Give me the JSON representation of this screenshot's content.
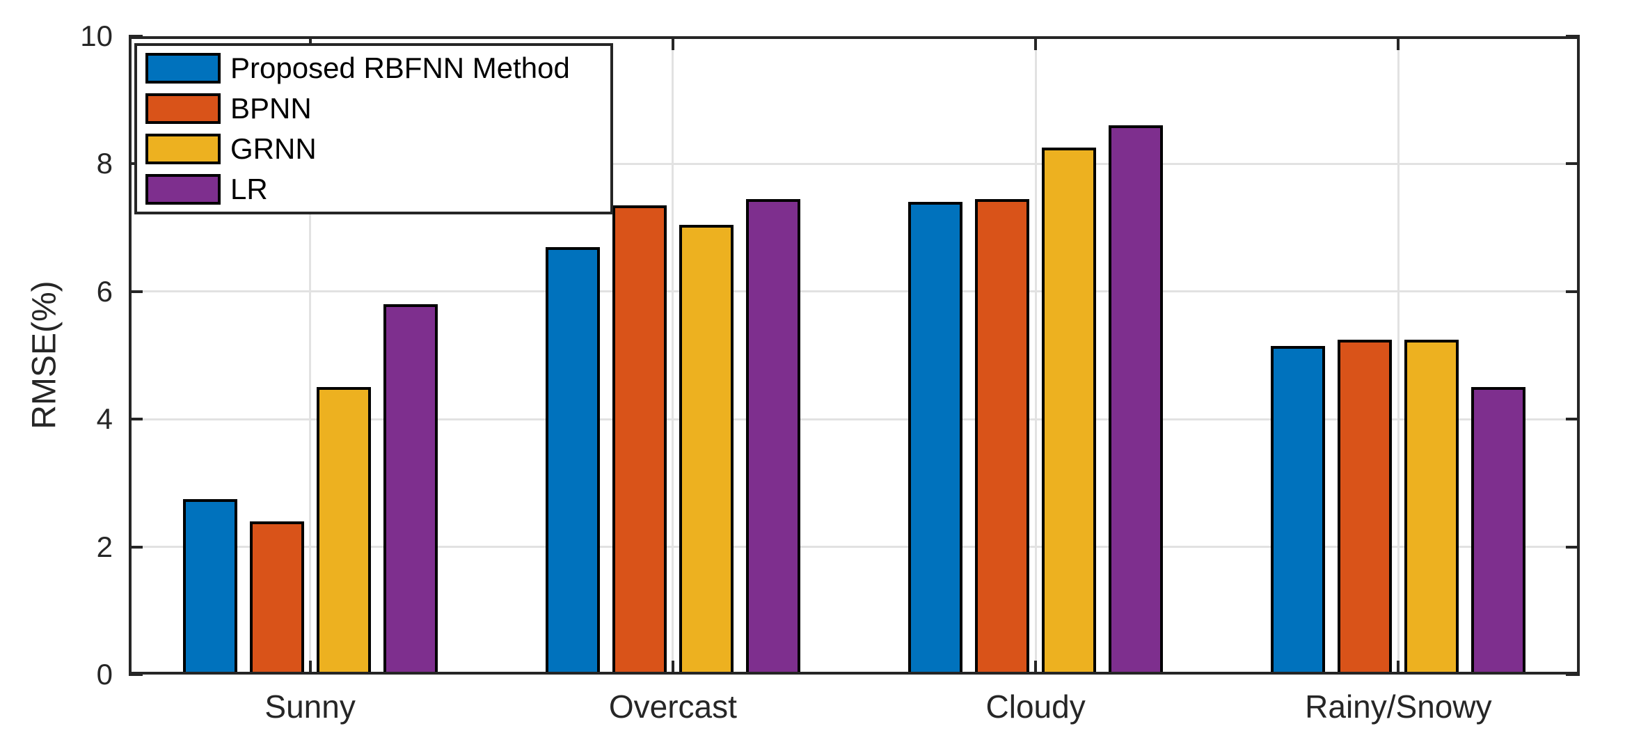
{
  "chart_data": {
    "type": "bar",
    "title": "",
    "xlabel": "",
    "ylabel": "RMSE(%)",
    "categories": [
      "Sunny",
      "Overcast",
      "Cloudy",
      "Rainy/Snowy"
    ],
    "series": [
      {
        "name": "Proposed RBFNN Method",
        "color": "#0072BD",
        "values": [
          2.75,
          6.7,
          7.4,
          5.15
        ]
      },
      {
        "name": "BPNN",
        "color": "#D95319",
        "values": [
          2.4,
          7.35,
          7.45,
          5.25
        ]
      },
      {
        "name": "GRNN",
        "color": "#EDB120",
        "values": [
          4.5,
          7.05,
          8.25,
          5.25
        ]
      },
      {
        "name": "LR",
        "color": "#7E2F8E",
        "values": [
          5.8,
          7.45,
          8.6,
          4.5
        ]
      }
    ],
    "ylim": [
      0,
      10
    ],
    "yticks": [
      0,
      2,
      4,
      6,
      8,
      10
    ],
    "grid": true,
    "legend_position": "top-left",
    "bar_edge_color": "#000000",
    "axis_color": "#262626",
    "grid_color": "#E2E2E2"
  }
}
